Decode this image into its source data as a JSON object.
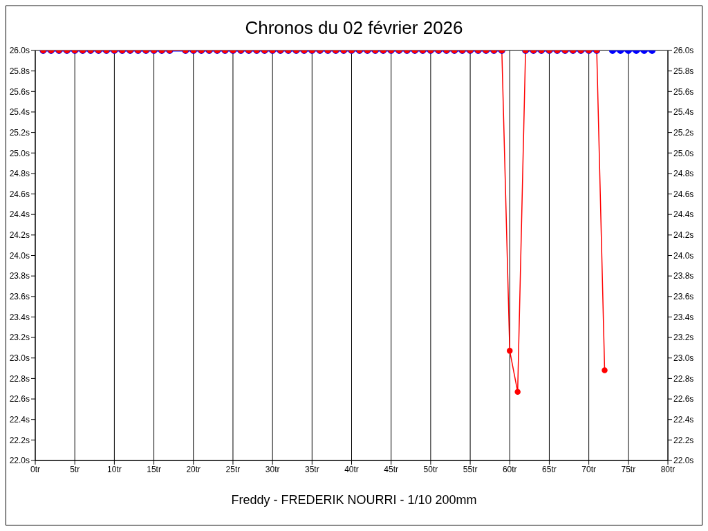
{
  "chart_data": {
    "type": "line",
    "title": "Chronos du 02 février 2026",
    "xlabel": "Freddy - FREDERIK NOURRI - 1/10 200mm",
    "x": [
      1,
      2,
      3,
      4,
      5,
      6,
      7,
      8,
      9,
      10,
      11,
      12,
      13,
      14,
      15,
      16,
      17,
      19,
      20,
      21,
      22,
      23,
      24,
      25,
      26,
      27,
      28,
      29,
      30,
      31,
      32,
      33,
      34,
      35,
      36,
      37,
      38,
      39,
      40,
      41,
      42,
      43,
      44,
      45,
      46,
      47,
      48,
      49,
      50,
      51,
      52,
      53,
      54,
      55,
      56,
      57,
      58,
      59,
      60,
      61,
      62,
      63,
      64,
      65,
      66,
      67,
      68,
      69,
      70,
      71,
      72,
      73,
      74,
      75,
      76,
      77,
      78
    ],
    "series": [
      {
        "color": "#0000ff",
        "values": [
          26.0,
          26.0,
          26.0,
          26.0,
          26.0,
          26.0,
          26.0,
          26.0,
          26.0,
          26.0,
          26.0,
          26.0,
          26.0,
          26.0,
          26.0,
          26.0,
          26.0,
          26.0,
          26.0,
          26.0,
          26.0,
          26.0,
          26.0,
          26.0,
          26.0,
          26.0,
          26.0,
          26.0,
          26.0,
          26.0,
          26.0,
          26.0,
          26.0,
          26.0,
          26.0,
          26.0,
          26.0,
          26.0,
          26.0,
          26.0,
          26.0,
          26.0,
          26.0,
          26.0,
          26.0,
          26.0,
          26.0,
          26.0,
          26.0,
          26.0,
          26.0,
          26.0,
          26.0,
          26.0,
          26.0,
          26.0,
          26.0,
          26.0,
          null,
          null,
          26.0,
          26.0,
          26.0,
          26.0,
          26.0,
          26.0,
          26.0,
          26.0,
          26.0,
          26.0,
          null,
          26.0,
          26.0,
          26.0,
          26.0,
          26.0,
          26.0
        ]
      },
      {
        "color": "#ff0000",
        "values": [
          26.0,
          26.0,
          26.0,
          26.0,
          26.0,
          26.0,
          26.0,
          26.0,
          26.0,
          26.0,
          26.0,
          26.0,
          26.0,
          26.0,
          26.0,
          26.0,
          26.0,
          26.0,
          26.0,
          26.0,
          26.0,
          26.0,
          26.0,
          26.0,
          26.0,
          26.0,
          26.0,
          26.0,
          26.0,
          26.0,
          26.0,
          26.0,
          26.0,
          26.0,
          26.0,
          26.0,
          26.0,
          26.0,
          26.0,
          26.0,
          26.0,
          26.0,
          26.0,
          26.0,
          26.0,
          26.0,
          26.0,
          26.0,
          26.0,
          26.0,
          26.0,
          26.0,
          26.0,
          26.0,
          26.0,
          26.0,
          26.0,
          26.0,
          23.07,
          22.67,
          26.0,
          26.0,
          26.0,
          26.0,
          26.0,
          26.0,
          26.0,
          26.0,
          26.0,
          26.0,
          22.88,
          null,
          null,
          null,
          null,
          null,
          null
        ]
      }
    ],
    "xlim": [
      0,
      80
    ],
    "xticks": [
      {
        "value": 0,
        "label": "0tr"
      },
      {
        "value": 5,
        "label": "5tr"
      },
      {
        "value": 10,
        "label": "10tr"
      },
      {
        "value": 15,
        "label": "15tr"
      },
      {
        "value": 20,
        "label": "20tr"
      },
      {
        "value": 25,
        "label": "25tr"
      },
      {
        "value": 30,
        "label": "30tr"
      },
      {
        "value": 35,
        "label": "35tr"
      },
      {
        "value": 40,
        "label": "40tr"
      },
      {
        "value": 45,
        "label": "45tr"
      },
      {
        "value": 50,
        "label": "50tr"
      },
      {
        "value": 55,
        "label": "55tr"
      },
      {
        "value": 60,
        "label": "60tr"
      },
      {
        "value": 65,
        "label": "65tr"
      },
      {
        "value": 70,
        "label": "70tr"
      },
      {
        "value": 75,
        "label": "75tr"
      },
      {
        "value": 80,
        "label": "80tr"
      }
    ],
    "ylim": [
      22.0,
      26.0
    ],
    "yticks": [
      {
        "value": 22.0,
        "label": "22.0s"
      },
      {
        "value": 22.2,
        "label": "22.2s"
      },
      {
        "value": 22.4,
        "label": "22.4s"
      },
      {
        "value": 22.6,
        "label": "22.6s"
      },
      {
        "value": 22.8,
        "label": "22.8s"
      },
      {
        "value": 23.0,
        "label": "23.0s"
      },
      {
        "value": 23.2,
        "label": "23.2s"
      },
      {
        "value": 23.4,
        "label": "23.4s"
      },
      {
        "value": 23.6,
        "label": "23.6s"
      },
      {
        "value": 23.8,
        "label": "23.8s"
      },
      {
        "value": 24.0,
        "label": "24.0s"
      },
      {
        "value": 24.2,
        "label": "24.2s"
      },
      {
        "value": 24.4,
        "label": "24.4s"
      },
      {
        "value": 24.6,
        "label": "24.6s"
      },
      {
        "value": 24.8,
        "label": "24.8s"
      },
      {
        "value": 25.0,
        "label": "25.0s"
      },
      {
        "value": 25.2,
        "label": "25.2s"
      },
      {
        "value": 25.4,
        "label": "25.4s"
      },
      {
        "value": 25.6,
        "label": "25.6s"
      },
      {
        "value": 25.8,
        "label": "25.8s"
      },
      {
        "value": 26.0,
        "label": "26.0s"
      }
    ],
    "y2lim": [
      22.0,
      26.0
    ],
    "y2ticks": [
      {
        "value": 22.0,
        "label": "22.0s"
      },
      {
        "value": 22.2,
        "label": "22.2s"
      },
      {
        "value": 22.4,
        "label": "22.4s"
      },
      {
        "value": 22.6,
        "label": "22.6s"
      },
      {
        "value": 22.8,
        "label": "22.8s"
      },
      {
        "value": 23.0,
        "label": "23.0s"
      },
      {
        "value": 23.2,
        "label": "23.2s"
      },
      {
        "value": 23.4,
        "label": "23.4s"
      },
      {
        "value": 23.6,
        "label": "23.6s"
      },
      {
        "value": 23.8,
        "label": "23.8s"
      },
      {
        "value": 24.0,
        "label": "24.0s"
      },
      {
        "value": 24.2,
        "label": "24.2s"
      },
      {
        "value": 24.4,
        "label": "24.4s"
      },
      {
        "value": 24.6,
        "label": "24.6s"
      },
      {
        "value": 24.8,
        "label": "24.8s"
      },
      {
        "value": 25.0,
        "label": "25.0s"
      },
      {
        "value": 25.2,
        "label": "25.2s"
      },
      {
        "value": 25.4,
        "label": "25.4s"
      },
      {
        "value": 25.6,
        "label": "25.6s"
      },
      {
        "value": 25.8,
        "label": "25.8s"
      },
      {
        "value": 26.0,
        "label": "26.0s"
      }
    ],
    "grid": true,
    "legend": false,
    "marker": "circle",
    "line_style": "solid"
  }
}
